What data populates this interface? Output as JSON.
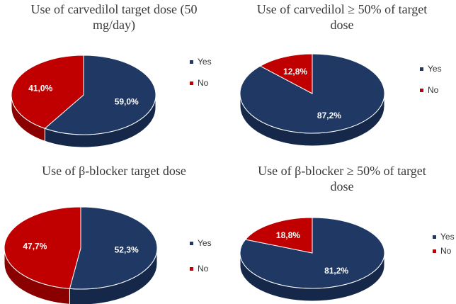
{
  "chart_data": [
    {
      "type": "pie",
      "title": "Use of carvedilol target dose (50 mg/day)",
      "title_lines": [
        "Use of carvedilol target dose (50",
        "mg/day)"
      ],
      "slices": [
        {
          "name": "Yes",
          "value": 59.0,
          "label": "59,0%",
          "color": "#1F3864",
          "side_color": "#15284A"
        },
        {
          "name": "No",
          "value": 41.0,
          "label": "41,0%",
          "color": "#C00000",
          "side_color": "#8A0000"
        }
      ],
      "legend": [
        "Yes",
        "No"
      ]
    },
    {
      "type": "pie",
      "title": "Use of carvedilol ≥ 50% of target dose",
      "title_lines": [
        "Use of carvedilol ≥ 50% of target",
        "dose"
      ],
      "slices": [
        {
          "name": "Yes",
          "value": 87.2,
          "label": "87,2%",
          "color": "#1F3864",
          "side_color": "#15284A"
        },
        {
          "name": "No",
          "value": 12.8,
          "label": "12,8%",
          "color": "#C00000",
          "side_color": "#8A0000"
        }
      ],
      "legend": [
        "Yes",
        "No"
      ]
    },
    {
      "type": "pie",
      "title": "Use of β-blocker target dose",
      "title_lines": [
        "Use of β-blocker target dose"
      ],
      "slices": [
        {
          "name": "Yes",
          "value": 52.3,
          "label": "52,3%",
          "color": "#1F3864",
          "side_color": "#15284A"
        },
        {
          "name": "No",
          "value": 47.7,
          "label": "47,7%",
          "color": "#C00000",
          "side_color": "#8A0000"
        }
      ],
      "legend": [
        "Yes",
        "No"
      ]
    },
    {
      "type": "pie",
      "title": "Use of β-blocker ≥ 50% of target dose",
      "title_lines": [
        "Use of β-blocker ≥ 50% of target",
        "dose"
      ],
      "slices": [
        {
          "name": "Yes",
          "value": 81.2,
          "label": "81,2%",
          "color": "#1F3864",
          "side_color": "#15284A"
        },
        {
          "name": "No",
          "value": 18.8,
          "label": "18,8%",
          "color": "#C00000",
          "side_color": "#8A0000"
        }
      ],
      "legend": [
        "Yes",
        "No"
      ]
    }
  ]
}
